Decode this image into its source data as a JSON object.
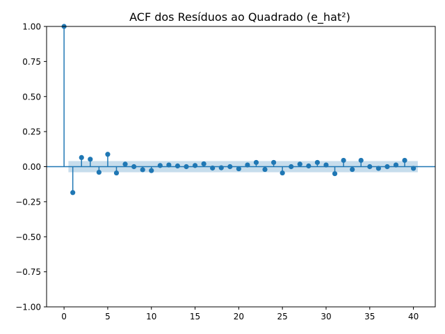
{
  "chart_data": {
    "type": "stem",
    "title": "ACF dos Resíduos ao Quadrado (e_hat²)",
    "xlabel": "",
    "ylabel": "",
    "xlim": [
      -2,
      42.5
    ],
    "ylim": [
      -1.0,
      1.0
    ],
    "xticks": [
      0,
      5,
      10,
      15,
      20,
      25,
      30,
      35,
      40
    ],
    "yticks": [
      -1.0,
      -0.75,
      -0.5,
      -0.25,
      0.0,
      0.25,
      0.5,
      0.75,
      1.0
    ],
    "ytick_labels": [
      "−1.00",
      "−0.75",
      "−0.50",
      "−0.25",
      "0.00",
      "0.25",
      "0.50",
      "0.75",
      "1.00"
    ],
    "xtick_labels": [
      "0",
      "5",
      "10",
      "15",
      "20",
      "25",
      "30",
      "35",
      "40"
    ],
    "lags": [
      0,
      1,
      2,
      3,
      4,
      5,
      6,
      7,
      8,
      9,
      10,
      11,
      12,
      13,
      14,
      15,
      16,
      17,
      18,
      19,
      20,
      21,
      22,
      23,
      24,
      25,
      26,
      27,
      28,
      29,
      30,
      31,
      32,
      33,
      34,
      35,
      36,
      37,
      38,
      39,
      40
    ],
    "values": [
      1.0,
      -0.185,
      0.065,
      0.053,
      -0.04,
      0.088,
      -0.045,
      0.018,
      0.0,
      -0.022,
      -0.028,
      0.008,
      0.012,
      0.005,
      0.0,
      0.008,
      0.02,
      -0.01,
      -0.008,
      0.0,
      -0.015,
      0.012,
      0.03,
      -0.02,
      0.03,
      -0.045,
      0.0,
      0.018,
      0.005,
      0.03,
      0.012,
      -0.05,
      0.045,
      -0.02,
      0.045,
      0.0,
      -0.012,
      0.0,
      0.012,
      0.045,
      -0.012
    ],
    "confidence_band": 0.04,
    "colors": {
      "stem": "#1f77b4",
      "band": "#1f77b4",
      "axis": "#000000"
    },
    "grid": false,
    "legend": "none"
  }
}
